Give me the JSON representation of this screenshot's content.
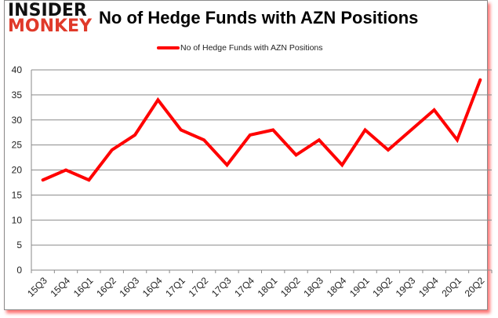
{
  "brand": {
    "logo_top": "INSIDER",
    "logo_bottom": "MONKEY"
  },
  "colors": {
    "line": "#ff0000",
    "grid": "#8a8a8a",
    "logo_red": "#e03a2a",
    "shadow": "#ff0000"
  },
  "chart_data": {
    "type": "line",
    "title": "No of Hedge Funds with AZN Positions",
    "xlabel": "",
    "ylabel": "",
    "ylim": [
      0,
      40
    ],
    "yticks": [
      0,
      5,
      10,
      15,
      20,
      25,
      30,
      35,
      40
    ],
    "grid": true,
    "legend_position": "top",
    "categories": [
      "15Q3",
      "15Q4",
      "16Q1",
      "16Q2",
      "16Q3",
      "16Q4",
      "17Q1",
      "17Q2",
      "17Q3",
      "17Q4",
      "18Q1",
      "18Q2",
      "18Q3",
      "18Q4",
      "19Q1",
      "19Q2",
      "19Q3",
      "19Q4",
      "20Q1",
      "20Q2"
    ],
    "series": [
      {
        "name": "No of Hedge Funds with AZN Positions",
        "values": [
          18,
          20,
          18,
          24,
          27,
          34,
          28,
          26,
          21,
          27,
          28,
          23,
          26,
          21,
          28,
          24,
          28,
          32,
          26,
          38
        ]
      }
    ]
  }
}
